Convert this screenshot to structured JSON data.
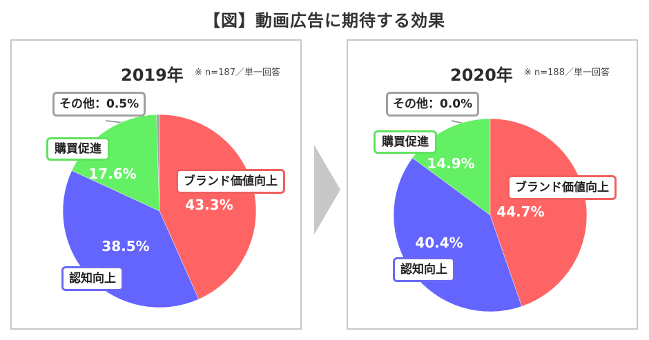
{
  "title": "【図】動画広告に期待する効果",
  "colors": {
    "brand": "#ff6464",
    "awareness": "#6464ff",
    "purchase": "#64f064",
    "other": "#a0a0a0",
    "separator": "#c8c8c8"
  },
  "panels": [
    {
      "year": "2019年",
      "note": "※ n=187／単一回答",
      "labels": {
        "other": "その他：0.5%",
        "purchase": "購買促進",
        "brand": "ブランド価値向上",
        "awareness": "認知向上"
      },
      "value_labels": {
        "brand": "43.3%",
        "awareness": "38.5%",
        "purchase": "17.6%"
      }
    },
    {
      "year": "2020年",
      "note": "※ n=188／単一回答",
      "labels": {
        "other": "その他：0.0%",
        "purchase": "購買促進",
        "brand": "ブランド価値向上",
        "awareness": "認知向上"
      },
      "value_labels": {
        "brand": "44.7%",
        "awareness": "40.4%",
        "purchase": "14.9%"
      }
    }
  ],
  "chart_data": [
    {
      "type": "pie",
      "title": "2019年",
      "categories": [
        "ブランド価値向上",
        "認知向上",
        "購買促進",
        "その他"
      ],
      "values": [
        43.3,
        38.5,
        17.6,
        0.5
      ],
      "unit": "%"
    },
    {
      "type": "pie",
      "title": "2020年",
      "categories": [
        "ブランド価値向上",
        "認知向上",
        "購買促進",
        "その他"
      ],
      "values": [
        44.7,
        40.4,
        14.9,
        0.0
      ],
      "unit": "%"
    }
  ]
}
